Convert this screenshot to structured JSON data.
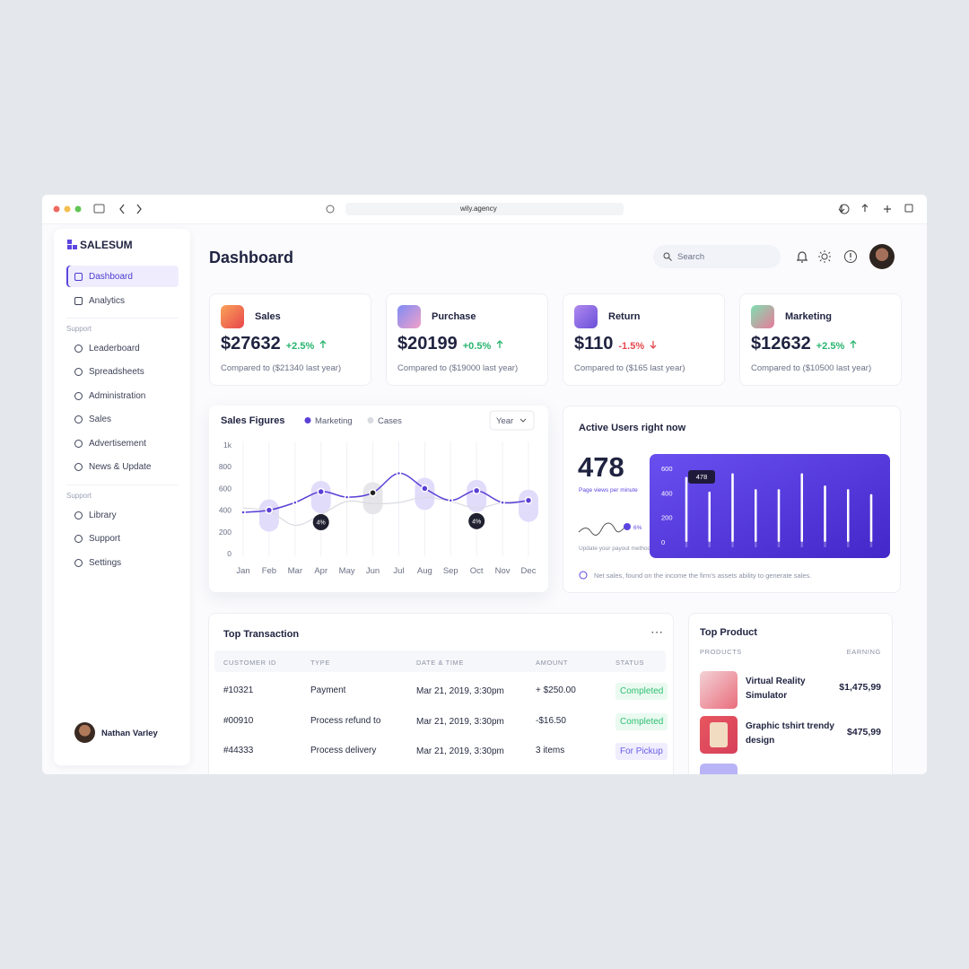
{
  "browser": {
    "url": "wily.agency"
  },
  "sidebar": {
    "brand": "SALESUM",
    "nav": [
      "Dashboard",
      "Analytics"
    ],
    "sections": [
      {
        "label": "Support",
        "items": [
          "Leaderboard",
          "Spreadsheets",
          "Administration",
          "Sales",
          "Advertisement",
          "News & Update"
        ]
      },
      {
        "label": "Support",
        "items": [
          "Library",
          "Support",
          "Settings"
        ]
      }
    ],
    "user": "Nathan Varley"
  },
  "header": {
    "title": "Dashboard",
    "search_placeholder": "Search"
  },
  "stats": [
    {
      "label": "Sales",
      "value": "$27632",
      "change": "+2.5%",
      "trend": "up",
      "comparison": "Compared to ($21340 last year)"
    },
    {
      "label": "Purchase",
      "value": "$20199",
      "change": "+0.5%",
      "trend": "up",
      "comparison": "Compared to ($19000 last year)"
    },
    {
      "label": "Return",
      "value": "$110",
      "change": "-1.5%",
      "trend": "down",
      "comparison": "Compared to ($165 last year)"
    },
    {
      "label": "Marketing",
      "value": "$12632",
      "change": "+2.5%",
      "trend": "up",
      "comparison": "Compared to ($10500 last year)"
    }
  ],
  "sales_figures": {
    "type": "line",
    "title": "Sales Figures",
    "period": "Year",
    "categories": [
      "Jan",
      "Feb",
      "Mar",
      "Apr",
      "May",
      "Jun",
      "Jul",
      "Aug",
      "Sep",
      "Oct",
      "Nov",
      "Dec"
    ],
    "series": [
      {
        "name": "Marketing",
        "color": "#5b3fd6",
        "values": [
          380,
          400,
          470,
          570,
          520,
          560,
          740,
          600,
          490,
          580,
          470,
          490
        ]
      },
      {
        "name": "Cases",
        "color": "#d9dbe2",
        "values": [
          420,
          390,
          260,
          360,
          480,
          460,
          470,
          520,
          480,
          420,
          470,
          480
        ]
      }
    ],
    "ylim": [
      0,
      1000
    ],
    "yticks": [
      0,
      200,
      400,
      600,
      800,
      {
        "value": 1000,
        "label": "1k"
      }
    ],
    "annotations": [
      {
        "category": "Apr",
        "label": "4%"
      },
      {
        "category": "Oct",
        "label": "4%"
      }
    ]
  },
  "active_users": {
    "title": "Active Users right now",
    "value": "478",
    "caption": "Page views per minute",
    "trend_label": "6%",
    "hint": "Update your payout method in Settings",
    "note": "Net sales, found on the income the firm's assets ability to generate sales.",
    "chart": {
      "type": "bar",
      "values": [
        530,
        410,
        560,
        430,
        430,
        560,
        460,
        430,
        390
      ],
      "color": "#ffffff",
      "ylim": [
        0,
        650
      ],
      "yticks": [
        0,
        200,
        400,
        600
      ],
      "tooltip": "478"
    }
  },
  "transactions": {
    "title": "Top Transaction",
    "columns": [
      "CUSTOMER ID",
      "TYPE",
      "DATE & TIME",
      "AMOUNT",
      "STATUS"
    ],
    "rows": [
      {
        "id": "#10321",
        "type": "Payment",
        "date": "Mar 21, 2019, 3:30pm",
        "amount": "+ $250.00",
        "status": "Completed",
        "status_kind": "success"
      },
      {
        "id": "#00910",
        "type": "Process refund to",
        "date": "Mar 21, 2019, 3:30pm",
        "amount": "-$16.50",
        "status": "Completed",
        "status_kind": "success"
      },
      {
        "id": "#44333",
        "type": "Process delivery",
        "date": "Mar 21, 2019, 3:30pm",
        "amount": "3 items",
        "status": "For Pickup",
        "status_kind": "pending"
      }
    ]
  },
  "products": {
    "title": "Top Product",
    "columns": [
      "PRODUCTS",
      "EARNING"
    ],
    "items": [
      {
        "name": "Virtual Reality Simulator",
        "earning": "$1,475,99"
      },
      {
        "name": "Graphic tshirt trendy design",
        "earning": "$475,99"
      }
    ]
  }
}
